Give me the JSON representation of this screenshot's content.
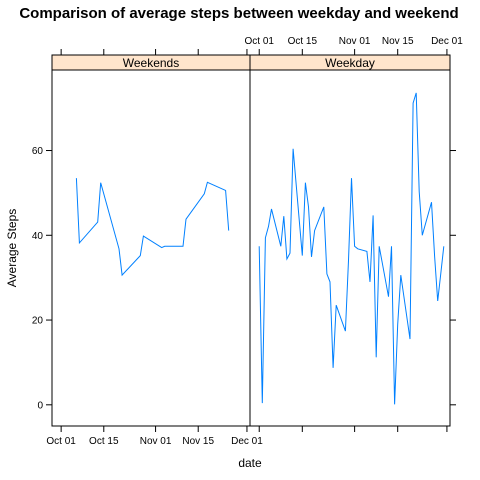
{
  "chart_data": {
    "type": "line",
    "title": "Comparison of average steps between weekday and weekend",
    "xlabel": "date",
    "ylabel": "Average Steps",
    "xlim": [
      "2012-09-28",
      "2012-12-02"
    ],
    "ylim": [
      -5,
      79
    ],
    "x_ticks": [
      "Oct 01",
      "Oct 15",
      "Nov 01",
      "Nov 15",
      "Dec 01"
    ],
    "x_tick_dates": [
      "2012-10-01",
      "2012-10-15",
      "2012-11-01",
      "2012-11-15",
      "2012-12-01"
    ],
    "y_ticks": [
      0,
      20,
      40,
      60
    ],
    "grid": false,
    "panels": [
      {
        "strip": "Weekends",
        "series": [
          {
            "x": [
              "2012-10-06",
              "2012-10-07",
              "2012-10-13",
              "2012-10-14",
              "2012-10-20",
              "2012-10-21",
              "2012-10-27",
              "2012-10-28",
              "2012-11-03",
              "2012-11-04",
              "2012-11-10",
              "2012-11-11",
              "2012-11-17",
              "2012-11-18",
              "2012-11-24",
              "2012-11-25"
            ],
            "y": [
              53.5,
              38.2,
              43.1,
              52.4,
              36.8,
              30.6,
              35.2,
              39.8,
              37.1,
              37.4,
              37.4,
              43.8,
              49.8,
              52.5,
              50.6,
              41.1
            ]
          }
        ]
      },
      {
        "strip": "Weekday",
        "series": [
          {
            "x": [
              "2012-10-01",
              "2012-10-02",
              "2012-10-03",
              "2012-10-04",
              "2012-10-05",
              "2012-10-08",
              "2012-10-09",
              "2012-10-10",
              "2012-10-11",
              "2012-10-12",
              "2012-10-15",
              "2012-10-16",
              "2012-10-17",
              "2012-10-18",
              "2012-10-19",
              "2012-10-22",
              "2012-10-23",
              "2012-10-24",
              "2012-10-25",
              "2012-10-26",
              "2012-10-29",
              "2012-10-30",
              "2012-10-31",
              "2012-11-01",
              "2012-11-02",
              "2012-11-05",
              "2012-11-06",
              "2012-11-07",
              "2012-11-08",
              "2012-11-09",
              "2012-11-12",
              "2012-11-13",
              "2012-11-14",
              "2012-11-15",
              "2012-11-16",
              "2012-11-19",
              "2012-11-20",
              "2012-11-21",
              "2012-11-22",
              "2012-11-23",
              "2012-11-26",
              "2012-11-27",
              "2012-11-28",
              "2012-11-29",
              "2012-11-30"
            ],
            "y": [
              37.4,
              0.4,
              39.4,
              42.1,
              46.2,
              37.4,
              44.5,
              34.4,
              35.8,
              60.4,
              35.2,
              52.4,
              46.7,
              34.9,
              41.1,
              46.7,
              30.9,
              29.0,
              8.7,
              23.5,
              17.4,
              34.1,
              53.5,
              37.4,
              36.8,
              36.2,
              29.0,
              44.7,
              11.2,
              37.4,
              25.5,
              37.4,
              0.1,
              19.0,
              30.6,
              15.5,
              71.2,
              73.6,
              50.3,
              40.0,
              47.8,
              35.1,
              24.5,
              31.0,
              37.4
            ]
          }
        ]
      }
    ]
  }
}
